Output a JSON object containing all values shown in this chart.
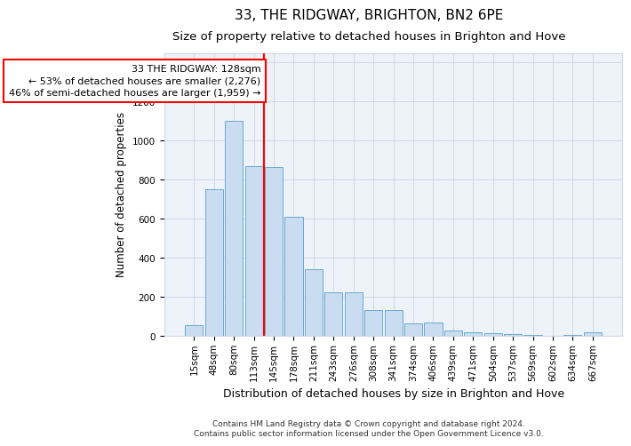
{
  "title": "33, THE RIDGWAY, BRIGHTON, BN2 6PE",
  "subtitle": "Size of property relative to detached houses in Brighton and Hove",
  "xlabel": "Distribution of detached houses by size in Brighton and Hove",
  "ylabel": "Number of detached properties",
  "categories": [
    "15sqm",
    "48sqm",
    "80sqm",
    "113sqm",
    "145sqm",
    "178sqm",
    "211sqm",
    "243sqm",
    "276sqm",
    "308sqm",
    "341sqm",
    "374sqm",
    "406sqm",
    "439sqm",
    "471sqm",
    "504sqm",
    "537sqm",
    "569sqm",
    "602sqm",
    "634sqm",
    "667sqm"
  ],
  "values": [
    55,
    750,
    1100,
    870,
    865,
    610,
    345,
    225,
    225,
    135,
    135,
    65,
    70,
    30,
    20,
    15,
    10,
    5,
    0,
    5,
    20
  ],
  "bar_color": "#c9dcf0",
  "bar_edge_color": "#6aaad4",
  "ref_line_x": 3.5,
  "ref_line_label": "33 THE RIDGWAY: 128sqm",
  "annotation_line1": "← 53% of detached houses are smaller (2,276)",
  "annotation_line2": "46% of semi-detached houses are larger (1,959) →",
  "annotation_box_color": "white",
  "annotation_box_edge_color": "red",
  "ref_line_color": "red",
  "ylim": [
    0,
    1450
  ],
  "yticks": [
    0,
    200,
    400,
    600,
    800,
    1000,
    1200,
    1400
  ],
  "grid_color": "#d0d8e8",
  "background_color": "#eef2f9",
  "footer1": "Contains HM Land Registry data © Crown copyright and database right 2024.",
  "footer2": "Contains public sector information licensed under the Open Government Licence v3.0.",
  "title_fontsize": 11,
  "subtitle_fontsize": 9.5,
  "xlabel_fontsize": 9,
  "ylabel_fontsize": 8.5,
  "tick_fontsize": 7.5,
  "annotation_fontsize": 8,
  "footer_fontsize": 6.5
}
